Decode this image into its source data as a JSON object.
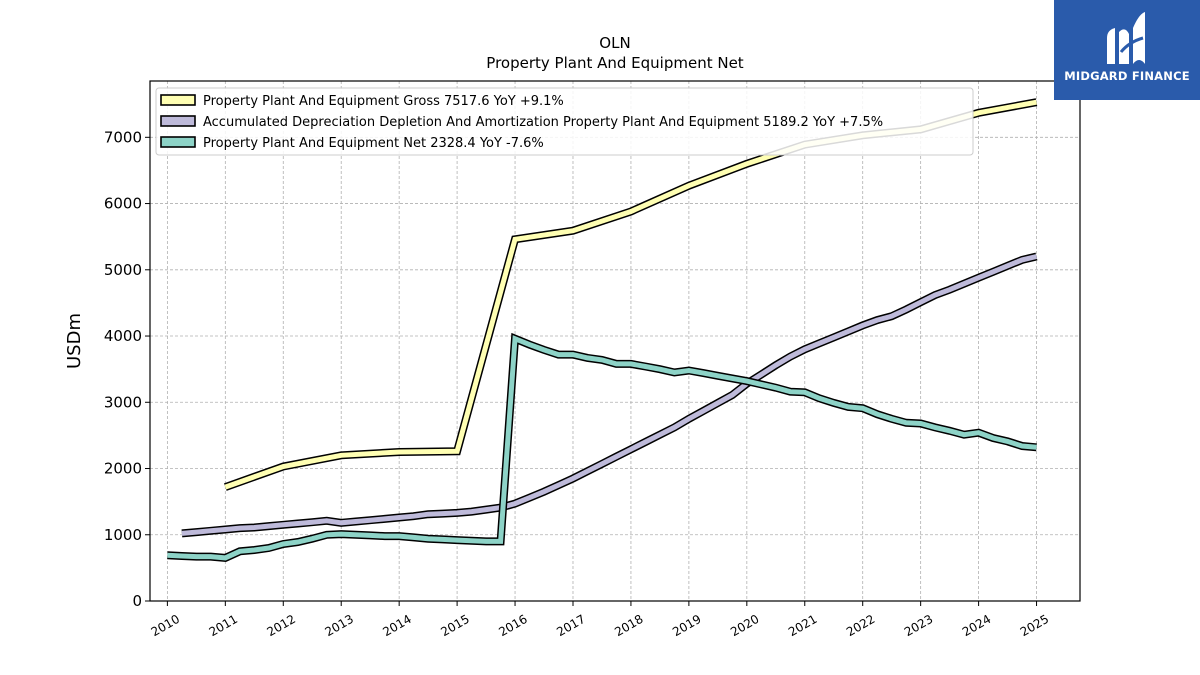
{
  "brand": {
    "name": "MIDGARD FINANCE",
    "bg_color": "#2a5bab"
  },
  "chart_data": {
    "type": "line",
    "title": "OLN",
    "subtitle": "Property Plant And Equipment Net",
    "xlabel": "",
    "ylabel": "USDm",
    "ylim": [
      0,
      7850
    ],
    "xlim": [
      2009.7,
      2025.75
    ],
    "yticks": [
      0,
      1000,
      2000,
      3000,
      4000,
      5000,
      6000,
      7000
    ],
    "xticks": [
      "2010",
      "2011",
      "2012",
      "2013",
      "2014",
      "2015",
      "2016",
      "2017",
      "2018",
      "2019",
      "2020",
      "2021",
      "2022",
      "2023",
      "2024",
      "2025"
    ],
    "grid": true,
    "legend_position": "top-left",
    "series": [
      {
        "name": "Property Plant And Equipment Gross  7517.6 YoY +9.1%",
        "color": "#ffffb3",
        "x": [
          2011.0,
          2012.0,
          2013.0,
          2014.0,
          2015.0,
          2016.0,
          2017.0,
          2018.0,
          2019.0,
          2020.0,
          2021.0,
          2022.0,
          2023.0,
          2024.0,
          2025.0
        ],
        "y": [
          1720,
          2030,
          2200,
          2250,
          2260,
          5460,
          5590,
          5880,
          6270,
          6600,
          6890,
          7030,
          7120,
          7370,
          7530
        ]
      },
      {
        "name": "Accumulated Depreciation Depletion And Amortization Property Plant And Equipment  5189.2 YoY +7.5%",
        "color": "#bebada",
        "x": [
          2010.25,
          2010.5,
          2010.75,
          2011.0,
          2011.25,
          2011.5,
          2011.75,
          2012.0,
          2012.25,
          2012.5,
          2012.75,
          2013.0,
          2013.25,
          2013.5,
          2013.75,
          2014.0,
          2014.25,
          2014.5,
          2014.75,
          2015.0,
          2015.25,
          2015.5,
          2015.75,
          2016.0,
          2016.25,
          2016.5,
          2016.75,
          2017.0,
          2017.25,
          2017.5,
          2017.75,
          2018.0,
          2018.25,
          2018.5,
          2018.75,
          2019.0,
          2019.25,
          2019.5,
          2019.75,
          2020.0,
          2020.25,
          2020.5,
          2020.75,
          2021.0,
          2021.25,
          2021.5,
          2021.75,
          2022.0,
          2022.25,
          2022.5,
          2022.75,
          2023.0,
          2023.25,
          2023.5,
          2023.75,
          2024.0,
          2024.25,
          2024.5,
          2024.75,
          2025.0
        ],
        "y": [
          1020,
          1040,
          1060,
          1080,
          1100,
          1110,
          1130,
          1150,
          1170,
          1190,
          1210,
          1180,
          1200,
          1220,
          1240,
          1260,
          1280,
          1310,
          1320,
          1330,
          1350,
          1380,
          1410,
          1470,
          1560,
          1650,
          1750,
          1850,
          1960,
          2070,
          2180,
          2290,
          2400,
          2510,
          2620,
          2750,
          2870,
          2990,
          3110,
          3280,
          3420,
          3560,
          3690,
          3800,
          3890,
          3980,
          4070,
          4160,
          4240,
          4300,
          4400,
          4510,
          4620,
          4700,
          4790,
          4880,
          4970,
          5060,
          5150,
          5200
        ]
      },
      {
        "name": "Property Plant And Equipment Net  2328.4 YoY -7.6%",
        "color": "#8dd3c7",
        "x": [
          2010.0,
          2010.25,
          2010.5,
          2010.75,
          2011.0,
          2011.25,
          2011.5,
          2011.75,
          2012.0,
          2012.25,
          2012.5,
          2012.75,
          2013.0,
          2013.25,
          2013.5,
          2013.75,
          2014.0,
          2014.25,
          2014.5,
          2014.75,
          2015.0,
          2015.25,
          2015.5,
          2015.75,
          2016.0,
          2016.25,
          2016.5,
          2016.75,
          2017.0,
          2017.25,
          2017.5,
          2017.75,
          2018.0,
          2018.25,
          2018.5,
          2018.75,
          2019.0,
          2019.25,
          2019.5,
          2019.75,
          2020.0,
          2020.25,
          2020.5,
          2020.75,
          2021.0,
          2021.25,
          2021.5,
          2021.75,
          2022.0,
          2022.25,
          2022.5,
          2022.75,
          2023.0,
          2023.25,
          2023.5,
          2023.75,
          2024.0,
          2024.25,
          2024.5,
          2024.75,
          2025.0
        ],
        "y": [
          690,
          680,
          670,
          670,
          650,
          750,
          770,
          800,
          860,
          890,
          940,
          1000,
          1010,
          1000,
          990,
          980,
          980,
          960,
          940,
          930,
          920,
          910,
          900,
          900,
          3960,
          3870,
          3790,
          3720,
          3720,
          3670,
          3640,
          3580,
          3580,
          3540,
          3500,
          3450,
          3480,
          3440,
          3400,
          3360,
          3320,
          3270,
          3220,
          3160,
          3150,
          3060,
          2990,
          2930,
          2910,
          2820,
          2750,
          2690,
          2680,
          2620,
          2570,
          2510,
          2540,
          2460,
          2410,
          2340,
          2320
        ]
      }
    ]
  }
}
